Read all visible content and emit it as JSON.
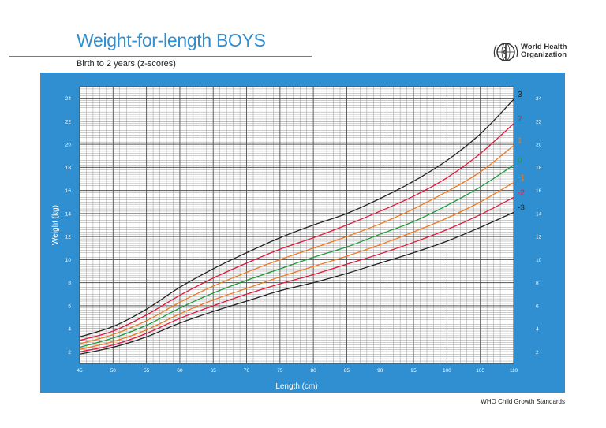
{
  "header": {
    "title": "Weight-for-length BOYS",
    "subtitle": "Birth to 2 years (z-scores)",
    "org_line1": "World Health",
    "org_line2": "Organization",
    "logo_icon": "who-emblem-icon"
  },
  "footer": {
    "note": "WHO Child Growth Standards"
  },
  "colors": {
    "panel": "#2f8fd0",
    "grid": "#9a9a9a",
    "z3": "#222222",
    "z2": "#e0193c",
    "z1": "#f07a22",
    "z0": "#1e9a3c"
  },
  "chart_data": {
    "type": "line",
    "title": "",
    "xlabel": "Length (cm)",
    "ylabel": "Weight (kg)",
    "xlim": [
      45,
      110
    ],
    "ylim": [
      1,
      25
    ],
    "x_ticks": [
      45,
      50,
      55,
      60,
      65,
      70,
      75,
      80,
      85,
      90,
      95,
      100,
      105,
      110
    ],
    "y_ticks": [
      2,
      4,
      6,
      8,
      10,
      12,
      14,
      16,
      18,
      20,
      22,
      24
    ],
    "grid": true,
    "x": [
      45,
      50,
      55,
      60,
      65,
      70,
      75,
      80,
      85,
      90,
      95,
      100,
      105,
      110
    ],
    "series": [
      {
        "name": "3",
        "color": "#222222",
        "values": [
          3.3,
          4.2,
          5.7,
          7.6,
          9.2,
          10.6,
          11.9,
          13.0,
          14.0,
          15.3,
          16.8,
          18.6,
          20.9,
          23.9
        ]
      },
      {
        "name": "2",
        "color": "#e0193c",
        "values": [
          3.0,
          3.8,
          5.2,
          6.9,
          8.4,
          9.7,
          10.9,
          11.9,
          13.0,
          14.2,
          15.5,
          17.1,
          19.2,
          21.8
        ]
      },
      {
        "name": "1",
        "color": "#f07a22",
        "values": [
          2.7,
          3.5,
          4.7,
          6.3,
          7.7,
          8.9,
          10.0,
          11.0,
          12.0,
          13.1,
          14.4,
          15.9,
          17.6,
          19.9
        ]
      },
      {
        "name": "0",
        "color": "#1e9a3c",
        "values": [
          2.4,
          3.2,
          4.3,
          5.8,
          7.1,
          8.2,
          9.2,
          10.2,
          11.1,
          12.2,
          13.3,
          14.7,
          16.3,
          18.2
        ]
      },
      {
        "name": "-1",
        "color": "#f07a22",
        "values": [
          2.2,
          2.9,
          3.9,
          5.3,
          6.5,
          7.5,
          8.5,
          9.4,
          10.3,
          11.3,
          12.4,
          13.6,
          15.0,
          16.7
        ]
      },
      {
        "name": "-2",
        "color": "#e0193c",
        "values": [
          2.0,
          2.6,
          3.6,
          4.9,
          6.0,
          7.0,
          7.9,
          8.7,
          9.6,
          10.5,
          11.5,
          12.6,
          13.9,
          15.4
        ]
      },
      {
        "name": "-3",
        "color": "#222222",
        "values": [
          1.8,
          2.4,
          3.3,
          4.5,
          5.5,
          6.4,
          7.3,
          8.0,
          8.8,
          9.7,
          10.6,
          11.6,
          12.8,
          14.1
        ]
      }
    ]
  }
}
